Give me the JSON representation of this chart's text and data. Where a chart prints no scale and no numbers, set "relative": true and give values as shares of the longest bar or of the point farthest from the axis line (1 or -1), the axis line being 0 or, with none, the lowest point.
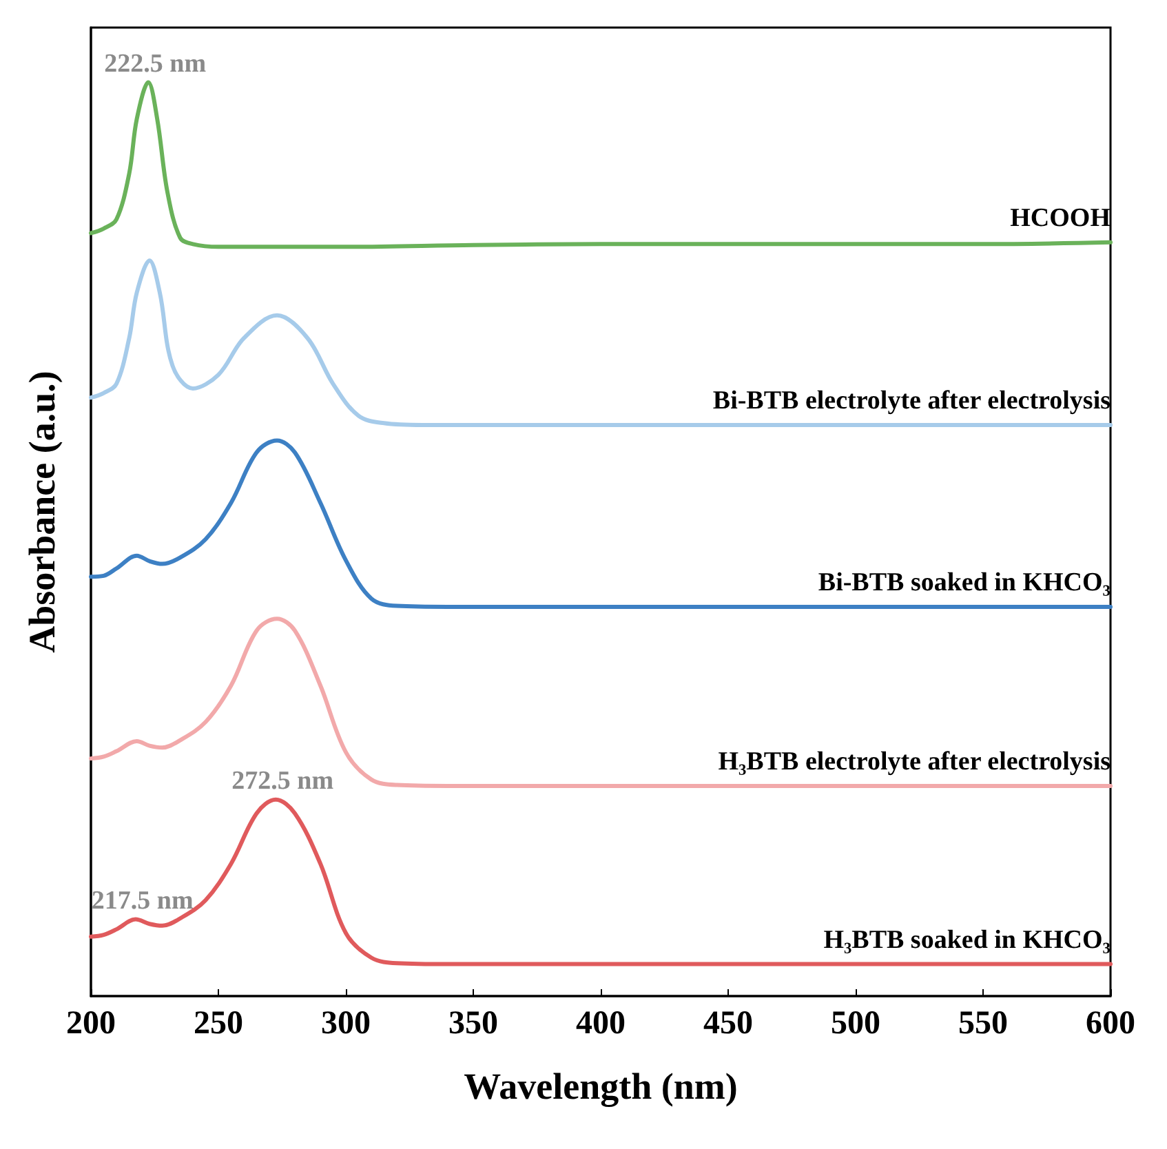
{
  "chart_data": {
    "type": "line",
    "relative": true,
    "xlabel": "Wavelength (nm)",
    "ylabel": "Absorbance (a.u.)",
    "xlim": [
      200,
      600
    ],
    "xticks": [
      200,
      250,
      300,
      350,
      400,
      450,
      500,
      550,
      600
    ],
    "grid": false,
    "legend": false,
    "marker": "none",
    "line_style": "solid",
    "series": [
      {
        "name": "HCOOH",
        "color": "#6ab25a",
        "x": [
          200,
          205,
          210,
          215,
          218,
          222.5,
          226,
          230,
          235,
          240,
          250,
          300,
          350,
          400,
          450,
          500,
          550,
          600
        ],
        "values": [
          0.835,
          0.84,
          0.85,
          0.9,
          0.96,
          1.0,
          0.96,
          0.88,
          0.83,
          0.823,
          0.82,
          0.82,
          0.822,
          0.823,
          0.823,
          0.823,
          0.823,
          0.825
        ]
      },
      {
        "name": "Bi-BTB electrolyte after electrolysis",
        "color": "#a6cbea",
        "x": [
          200,
          205,
          210,
          215,
          218,
          223,
          227,
          232,
          240,
          250,
          260,
          273,
          285,
          295,
          305,
          315,
          330,
          400,
          500,
          600
        ],
        "values": [
          0.655,
          0.66,
          0.67,
          0.72,
          0.77,
          0.805,
          0.77,
          0.69,
          0.665,
          0.68,
          0.72,
          0.745,
          0.72,
          0.67,
          0.635,
          0.627,
          0.625,
          0.625,
          0.625,
          0.625
        ]
      },
      {
        "name": "Bi-BTB soaked in KHCO₃",
        "color": "#3d80c4",
        "x": [
          200,
          205,
          210,
          218,
          223,
          228,
          235,
          245,
          255,
          265,
          273,
          280,
          290,
          300,
          310,
          320,
          340,
          400,
          500,
          600
        ],
        "values": [
          0.459,
          0.46,
          0.468,
          0.482,
          0.476,
          0.473,
          0.48,
          0.5,
          0.54,
          0.595,
          0.608,
          0.595,
          0.54,
          0.477,
          0.435,
          0.427,
          0.426,
          0.426,
          0.426,
          0.426
        ]
      },
      {
        "name": "H₃BTB electrolyte after electrolysis",
        "color": "#f2a9aa",
        "x": [
          200,
          205,
          210,
          218,
          223,
          228,
          235,
          245,
          255,
          265,
          273,
          280,
          290,
          300,
          310,
          320,
          340,
          400,
          500,
          600
        ],
        "values": [
          0.26,
          0.262,
          0.268,
          0.279,
          0.274,
          0.272,
          0.28,
          0.3,
          0.34,
          0.4,
          0.413,
          0.4,
          0.34,
          0.267,
          0.237,
          0.231,
          0.23,
          0.23,
          0.23,
          0.23
        ]
      },
      {
        "name": "H₃BTB soaked in KHCO₃",
        "color": "#e05a5c",
        "x": [
          200,
          205,
          210,
          217.5,
          223,
          228,
          235,
          245,
          255,
          265,
          272.5,
          280,
          290,
          300,
          310,
          320,
          340,
          400,
          500,
          600
        ],
        "values": [
          0.065,
          0.067,
          0.073,
          0.084,
          0.079,
          0.077,
          0.085,
          0.105,
          0.145,
          0.2,
          0.215,
          0.2,
          0.145,
          0.069,
          0.042,
          0.036,
          0.035,
          0.035,
          0.035,
          0.035
        ]
      }
    ],
    "annotations": [
      {
        "text": "222.5 nm",
        "x": 222.5,
        "y": 1.0
      },
      {
        "text": "272.5 nm",
        "x": 272.5,
        "y": 0.215
      },
      {
        "text": "217.5 nm",
        "x": 217.5,
        "y": 0.084
      }
    ]
  }
}
